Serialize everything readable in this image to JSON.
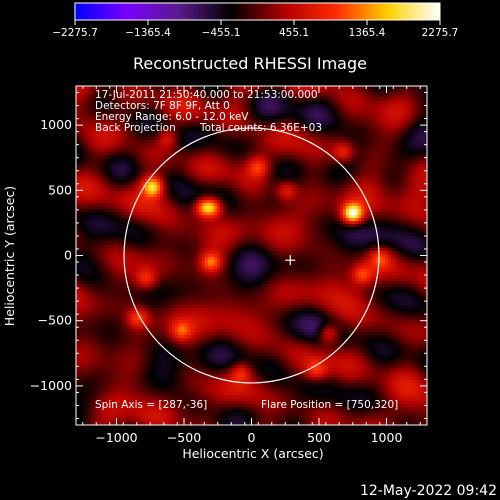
{
  "chart_data": {
    "type": "heatmap",
    "title": "Reconstructed RHESSI Image",
    "xlabel": "Heliocentric X (arcsec)",
    "ylabel": "Heliocentric Y (arcsec)",
    "xlim": [
      -1300,
      1300
    ],
    "ylim": [
      -1300,
      1300
    ],
    "x_ticks": [
      -1000,
      -500,
      0,
      500,
      1000
    ],
    "y_ticks": [
      -1000,
      -500,
      0,
      500,
      1000
    ],
    "x_tick_labels": [
      "−1000",
      "−500",
      "0",
      "500",
      "1000"
    ],
    "y_tick_labels": [
      "−1000",
      "−500",
      "0",
      "500",
      "1000"
    ],
    "colorbar": {
      "min": -2275.7,
      "max": 2275.7,
      "tick_values": [
        -2275.7,
        -1365.4,
        -455.1,
        455.1,
        1365.4,
        2275.7
      ],
      "tick_labels": [
        "−2275.7",
        "−1365.4",
        "−455.1",
        "455.1",
        "1365.4",
        "2275.7"
      ],
      "colors": [
        "#0000ff",
        "#7a00ff",
        "#5a1a8a",
        "#000000",
        "#b00000",
        "#ff2a00",
        "#ffd000",
        "#ffffff"
      ]
    },
    "annotations": [
      "17-Jul-2011 21:50:40.000 to 21:53:00.000",
      "Detectors: 7F 8F 9F, Att 0",
      "Energy Range: 6.0 - 12.0 keV",
      "Back Projection",
      "Total counts: 6.36E+03",
      "Spin Axis = [287,-36]",
      "Flare Position = [750,320]"
    ],
    "solar_limb_radius": 944,
    "spin_axis": [
      287,
      -36
    ],
    "flare_position": [
      750,
      320
    ],
    "hot_spots": [
      {
        "x": 750,
        "y": 320,
        "value": 2200
      },
      {
        "x": -730,
        "y": 530,
        "value": 1700
      },
      {
        "x": -350,
        "y": 370,
        "value": 1500
      },
      {
        "x": -280,
        "y": 370,
        "value": 1300
      },
      {
        "x": -300,
        "y": -50,
        "value": 1200
      },
      {
        "x": 570,
        "y": -600,
        "value": 1100
      },
      {
        "x": 680,
        "y": 790,
        "value": 900
      },
      {
        "x": 50,
        "y": 680,
        "value": 900
      },
      {
        "x": -840,
        "y": -480,
        "value": 1000
      },
      {
        "x": -780,
        "y": -180,
        "value": 900
      },
      {
        "x": -520,
        "y": -580,
        "value": 900
      },
      {
        "x": 950,
        "y": -20,
        "value": 800
      },
      {
        "x": 820,
        "y": -150,
        "value": 1000
      },
      {
        "x": -80,
        "y": -900,
        "value": 800
      },
      {
        "x": 480,
        "y": -880,
        "value": 800
      },
      {
        "x": -620,
        "y": 900,
        "value": 800
      },
      {
        "x": 260,
        "y": 500,
        "value": 900
      }
    ]
  },
  "footer": {
    "date": "12-May-2022 09:42"
  }
}
